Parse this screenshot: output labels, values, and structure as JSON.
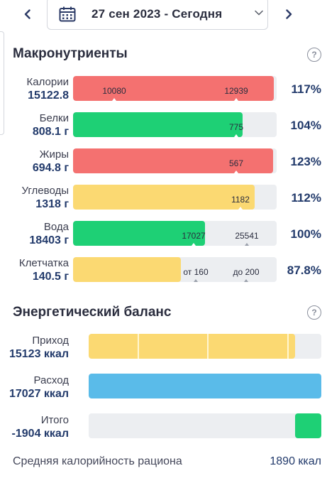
{
  "header": {
    "date_label": "27 сен 2023 - Сегодня",
    "prev_icon": "chevron-left-icon",
    "next_icon": "chevron-right-icon",
    "calendar_icon": "calendar-icon"
  },
  "macros": {
    "title": "Макронутриенты",
    "help": "?",
    "rows": [
      {
        "name": "Калории",
        "value": "15122.8",
        "percent": "117%",
        "color": "#f47170",
        "fill_fraction": 0.986,
        "marks": [
          "10080",
          "12939"
        ]
      },
      {
        "name": "Белки",
        "value": "808.1 г",
        "percent": "104%",
        "color": "#1ed075",
        "fill_fraction": 0.833,
        "marks": [
          "775"
        ]
      },
      {
        "name": "Жиры",
        "value": "694.8 г",
        "percent": "123%",
        "color": "#f47170",
        "fill_fraction": 0.983,
        "marks": [
          "567"
        ]
      },
      {
        "name": "Углеводы",
        "value": "1318 г",
        "percent": "112%",
        "color": "#fbd972",
        "fill_fraction": 0.891,
        "marks": [
          "1182"
        ]
      },
      {
        "name": "Вода",
        "value": "18403 г",
        "percent": "100%",
        "color": "#1ed075",
        "fill_fraction": 0.648,
        "marks": [
          "17027",
          "25541"
        ]
      },
      {
        "name": "Клетчатка",
        "value": "140.5 г",
        "percent": "87.8%",
        "color": "#fbd972",
        "fill_fraction": 0.528,
        "marks": [
          "от 160",
          "до 200"
        ]
      }
    ]
  },
  "energy": {
    "title": "Энергетический баланс",
    "help": "?",
    "rows": [
      {
        "name": "Приход",
        "value": "15123 ккал",
        "color": "#fbd972",
        "fill_fraction": 0.888
      },
      {
        "name": "Расход",
        "value": "17027 ккал",
        "color": "#5abbe9",
        "fill_fraction": 1.0
      },
      {
        "name": "Итого",
        "value": "-1904 ккал",
        "color": "#1ed075",
        "fill_fraction": 0.112
      }
    ]
  },
  "average": {
    "label": "Средняя калорийность рациона",
    "value": "1890 ккал"
  }
}
